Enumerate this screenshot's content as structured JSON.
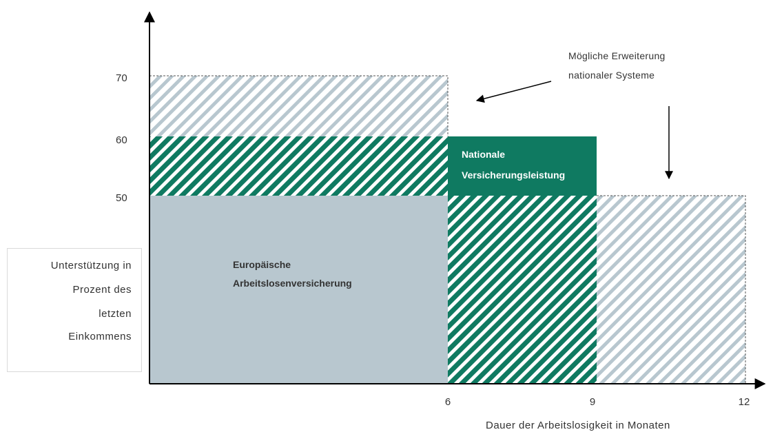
{
  "chart_data": {
    "type": "area",
    "x_ticks": [
      "6",
      "9",
      "12"
    ],
    "y_ticks": [
      "70",
      "60",
      "50"
    ],
    "xlabel": "Dauer der Arbeitslosigkeit in Monaten",
    "ylabel_lines": [
      "Unterstützung in",
      "Prozent des",
      "letzten",
      "Einkommens"
    ],
    "regions": [
      {
        "name": "Europäische Arbeitslosenversicherung",
        "x": [
          0,
          6
        ],
        "y": [
          0,
          50
        ],
        "style": "solid-grey"
      },
      {
        "name": "Nationale Versicherungsleistung",
        "x": [
          0,
          6
        ],
        "y": [
          50,
          60
        ],
        "style": "hatched-green"
      },
      {
        "name": "Nationale Versicherungsleistung",
        "x": [
          6,
          9
        ],
        "y": [
          0,
          50
        ],
        "style": "hatched-green"
      },
      {
        "name": "Nationale Versicherungsleistung",
        "x": [
          6,
          9
        ],
        "y": [
          50,
          60
        ],
        "style": "solid-green"
      },
      {
        "name": "Mögliche Erweiterung nationaler Systeme",
        "x": [
          0,
          6
        ],
        "y": [
          60,
          70
        ],
        "style": "hatched-light"
      },
      {
        "name": "Mögliche Erweiterung nationaler Systeme",
        "x": [
          9,
          12
        ],
        "y": [
          0,
          50
        ],
        "style": "hatched-light"
      }
    ],
    "labels": {
      "european": [
        "Europäische",
        "Arbeitslosenversicherung"
      ],
      "national": [
        "Nationale",
        "Versicherungsleistung"
      ],
      "extension": [
        "Mögliche Erweiterung",
        "nationaler Systeme"
      ]
    }
  },
  "colors": {
    "green": "#0f7a61",
    "grey": "#b8c7cf",
    "light_hatch": "#b8c7cf"
  }
}
